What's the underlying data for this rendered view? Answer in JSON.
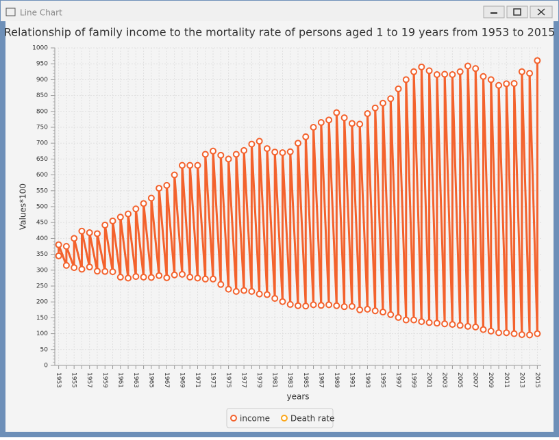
{
  "window": {
    "title": "Line Chart"
  },
  "chart_data": {
    "type": "line",
    "title": "Relationship of family income to the mortality rate of persons aged 1 to 19 years from 1953 to 2015",
    "x_label": "years",
    "y_label": "Values*100",
    "categories": [
      "1953",
      null,
      "1955",
      null,
      "1957",
      null,
      "1959",
      null,
      "1961",
      null,
      "1963",
      null,
      "1965",
      null,
      "1967",
      null,
      "1969",
      null,
      "1971",
      null,
      "1973",
      null,
      "1975",
      null,
      "1977",
      null,
      "1979",
      null,
      "1981",
      null,
      "1983",
      null,
      "1985",
      null,
      "1987",
      null,
      "1989",
      null,
      "1991",
      null,
      "1993",
      null,
      "1995",
      null,
      "1997",
      null,
      "1999",
      null,
      "2001",
      null,
      "2003",
      null,
      "2005",
      null,
      "2007",
      null,
      "2009",
      null,
      "2011",
      null,
      "2013",
      null,
      "2015"
    ],
    "series": [
      {
        "name": "income",
        "color": "#f3622d",
        "values": [
          380,
          375,
          400,
          423,
          418,
          415,
          442,
          455,
          467,
          477,
          493,
          510,
          527,
          558,
          567,
          600,
          630,
          630,
          630,
          665,
          675,
          662,
          650,
          665,
          677,
          697,
          706,
          683,
          672,
          670,
          673,
          700,
          720,
          750,
          765,
          773,
          796,
          780,
          762,
          760,
          793,
          811,
          826,
          840,
          871,
          900,
          925,
          940,
          928,
          916,
          917,
          916,
          925,
          943,
          935,
          910,
          900,
          882,
          887,
          888,
          925,
          920,
          960
        ]
      },
      {
        "name": "Death rate",
        "color": "#fba71b",
        "values": [
          345,
          315,
          308,
          303,
          310,
          297,
          296,
          295,
          278,
          275,
          280,
          278,
          277,
          283,
          276,
          285,
          287,
          278,
          275,
          272,
          272,
          255,
          240,
          233,
          236,
          233,
          225,
          223,
          211,
          201,
          192,
          188,
          187,
          191,
          189,
          191,
          188,
          185,
          186,
          175,
          177,
          172,
          168,
          160,
          151,
          143,
          143,
          138,
          135,
          133,
          131,
          129,
          126,
          123,
          121,
          113,
          108,
          103,
          103,
          100,
          97,
          96,
          100
        ]
      }
    ],
    "ylim": [
      0,
      1000
    ],
    "yticks": [
      0,
      50,
      100,
      150,
      200,
      250,
      300,
      350,
      400,
      450,
      500,
      550,
      600,
      650,
      700,
      750,
      800,
      850,
      900,
      950,
      1000
    ],
    "grid": true,
    "legend": "bottom"
  }
}
